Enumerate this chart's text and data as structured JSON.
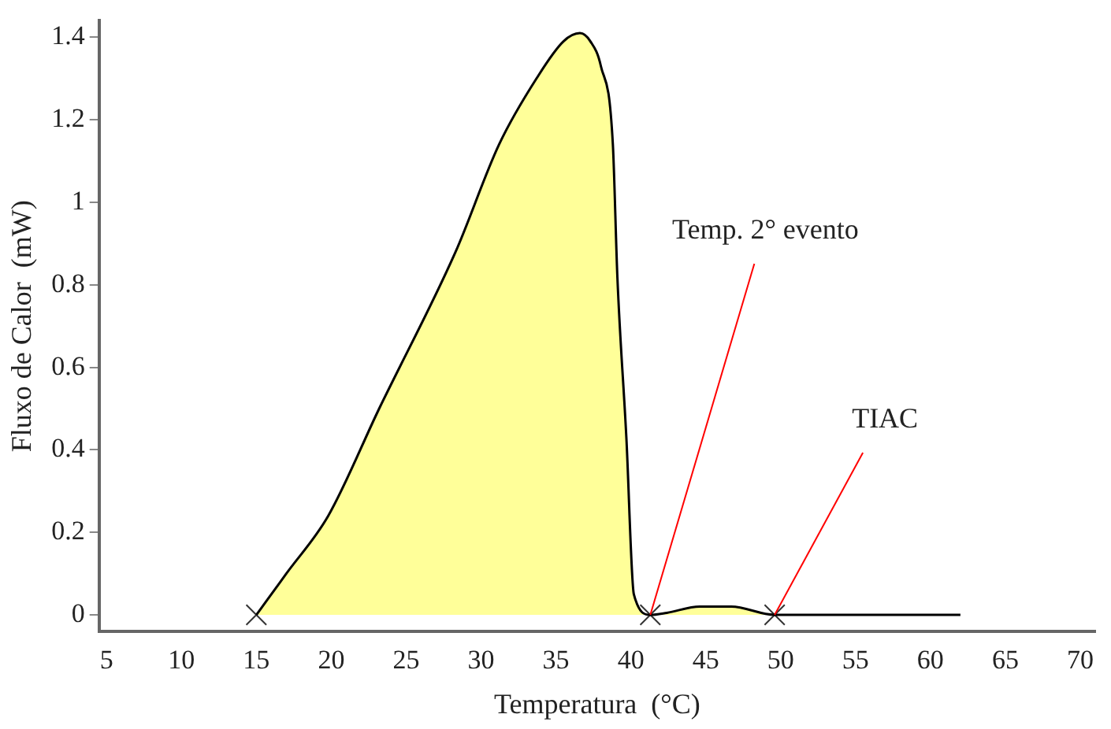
{
  "chart_data": {
    "type": "area",
    "xlabel": "Temperatura  (°C)",
    "ylabel": "Fluxo de Calor  (mW)",
    "xlim": [
      4.5,
      71
    ],
    "xticks": [
      5,
      10,
      15,
      20,
      25,
      30,
      35,
      40,
      45,
      50,
      55,
      60,
      65,
      70
    ],
    "ylim": [
      -0.04,
      1.44
    ],
    "yticks": [
      0,
      0.2,
      0.4,
      0.6,
      0.8,
      1,
      1.2,
      1.4
    ],
    "grid": false,
    "legend": false,
    "series": [
      {
        "color": "#ffff99",
        "x": [
          15,
          17,
          19.8,
          23.2,
          28.3,
          31.2,
          33.7,
          35.5,
          36.6,
          37.3,
          38,
          38.8,
          39.1,
          39.7,
          40.2,
          41.3,
          42.4,
          44.6,
          46.7,
          49.6,
          62
        ],
        "values": [
          0,
          0.1,
          0.24,
          0.5,
          0.88,
          1.14,
          1.3,
          1.39,
          1.41,
          1.39,
          1.33,
          1.14,
          0.82,
          0.43,
          0.05,
          0,
          0.005,
          0.02,
          0.02,
          0,
          0
        ]
      },
      {
        "type": "scatter",
        "color": "#333333",
        "marker": "cross",
        "x": [
          15,
          41.3,
          49.6
        ],
        "values": [
          0,
          0,
          0
        ]
      }
    ],
    "annotations": [
      {
        "text": "Temp. 2° evento",
        "x": 41.3,
        "y": 0
      },
      {
        "text": "TIAC",
        "x": 49.6,
        "y": 0
      }
    ]
  }
}
